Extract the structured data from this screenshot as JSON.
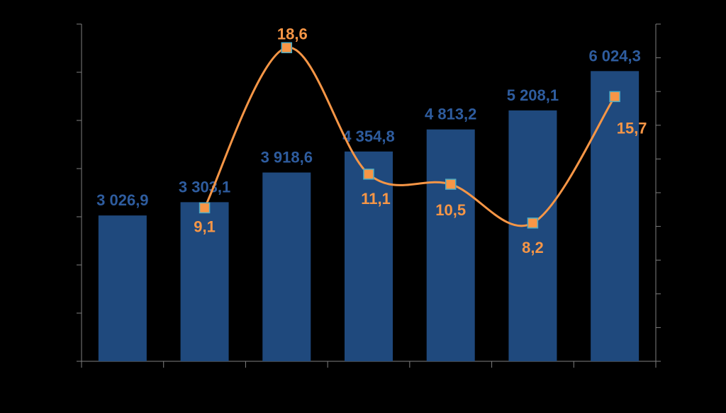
{
  "chart_data": {
    "type": "bar",
    "title": "",
    "xlabel": "",
    "ylabel": "",
    "categories": [
      "",
      "",
      "",
      "",
      "",
      "",
      ""
    ],
    "series": [
      {
        "type": "bar",
        "axis": "left",
        "values": [
          3026.9,
          3303.1,
          3918.6,
          4354.8,
          4813.2,
          5208.1,
          6024.3
        ],
        "labels": [
          "3 026,9",
          "3 303,1",
          "3 918,6",
          "4 354,8",
          "4 813,2",
          "5 208,1",
          "6 024,3"
        ]
      },
      {
        "type": "line",
        "axis": "right",
        "values": [
          null,
          9.1,
          18.6,
          11.1,
          10.5,
          8.2,
          15.7
        ],
        "labels": [
          "",
          "9,1",
          "18,6",
          "11,1",
          "10,5",
          "8,2",
          "15,7"
        ]
      }
    ],
    "ylim_left": [
      0,
      7000
    ],
    "ylim_right": [
      0,
      20
    ],
    "left_tick_count": 7,
    "right_tick_count": 10,
    "grid": false,
    "legend": "none",
    "colors": {
      "background": "#000000",
      "bar": "#1F497D",
      "bar_label": "#2E5C9E",
      "line": "#F79646",
      "marker_fill": "#F79646",
      "marker_stroke": "#4BACC6",
      "line_label": "#F79646",
      "axis": "#7F7F7F"
    }
  }
}
